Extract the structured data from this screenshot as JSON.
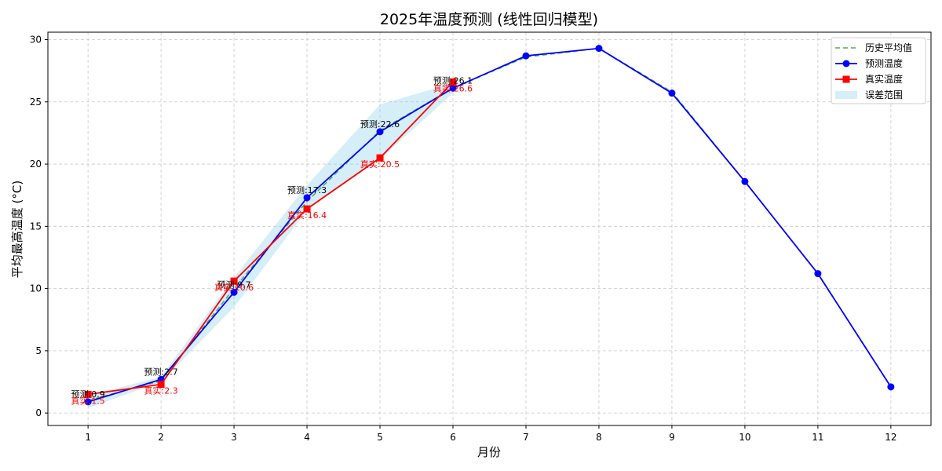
{
  "chart_data": {
    "type": "line",
    "title": "2025年温度预测 (线性回归模型)",
    "xlabel": "月份",
    "ylabel": "平均最高温度 (°C)",
    "x": [
      1,
      2,
      3,
      4,
      5,
      6,
      7,
      8,
      9,
      10,
      11,
      12
    ],
    "xlim": [
      0.45,
      12.55
    ],
    "ylim": [
      -1,
      30.6
    ],
    "yticks": [
      0,
      5,
      10,
      15,
      20,
      25,
      30
    ],
    "grid": true,
    "legend_position": "top-right",
    "series": [
      {
        "name": "历史平均值",
        "style": "dashed",
        "color": "#4caf50",
        "values": [
          1.0,
          2.6,
          10.0,
          17.0,
          22.7,
          26.1,
          28.6,
          29.3,
          25.8,
          18.6,
          11.2,
          2.1
        ]
      },
      {
        "name": "预测温度",
        "style": "line-circle",
        "color": "#0000ff",
        "values": [
          0.9,
          2.7,
          9.7,
          17.3,
          22.6,
          26.1,
          28.7,
          29.3,
          25.7,
          18.6,
          11.2,
          2.1
        ]
      },
      {
        "name": "真实温度",
        "style": "line-square",
        "color": "#ff0000",
        "x": [
          1,
          2,
          3,
          4,
          5,
          6
        ],
        "values": [
          1.5,
          2.3,
          10.6,
          16.4,
          20.5,
          26.6
        ]
      }
    ],
    "error_band": {
      "name": "误差范围",
      "color": "#87ceeb",
      "x": [
        1,
        2,
        3,
        4,
        5,
        6
      ],
      "upper": [
        1.4,
        2.9,
        10.9,
        18.3,
        24.8,
        26.5
      ],
      "lower": [
        0.4,
        2.5,
        8.5,
        16.3,
        20.4,
        25.7
      ]
    },
    "annotations": {
      "pred": [
        "预测:0.9",
        "预测:2.7",
        "预测:9.7",
        "预测:17.3",
        "预测:22.6",
        "预测:26.1"
      ],
      "true": [
        "真实:1.5",
        "真实:2.3",
        "真实:10.6",
        "真实:16.4",
        "真实:20.5",
        "真实:26.6"
      ]
    }
  }
}
